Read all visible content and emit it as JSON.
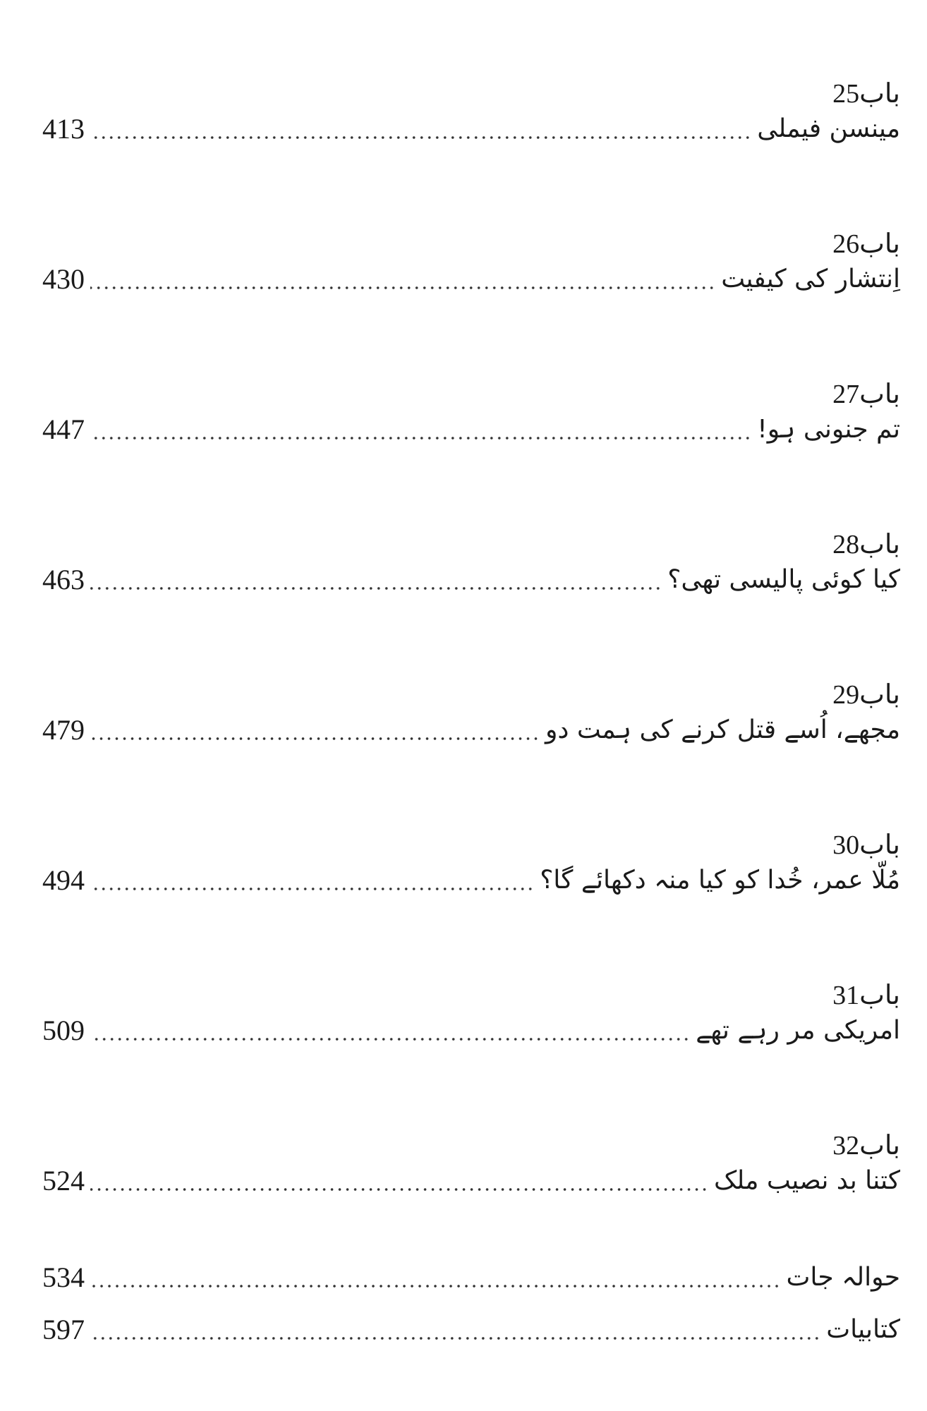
{
  "chapters": [
    {
      "label": "باب",
      "number": "25",
      "title": "مینسن فیملی",
      "page": "413"
    },
    {
      "label": "باب",
      "number": "26",
      "title": "اِنتشار کی کیفیت",
      "page": "430"
    },
    {
      "label": "باب",
      "number": "27",
      "title": "تم جنونی ہو!",
      "page": "447"
    },
    {
      "label": "باب",
      "number": "28",
      "title": "کیا کوئی پالیسی تھی؟",
      "page": "463"
    },
    {
      "label": "باب",
      "number": "29",
      "title": "مجھے، اُسے قتل کرنے کی ہمت دو",
      "page": "479"
    },
    {
      "label": "باب",
      "number": "30",
      "title": "مُلّا عمر، خُدا کو کیا منہ دکھائے گا؟",
      "page": "494"
    },
    {
      "label": "باب",
      "number": "31",
      "title": "امریکی مر رہے تھے",
      "page": "509"
    },
    {
      "label": "باب",
      "number": "32",
      "title": "کتنا بد نصیب ملک",
      "page": "524"
    }
  ],
  "appendix": [
    {
      "title": "حوالہ جات",
      "page": "534"
    },
    {
      "title": "کتابیات",
      "page": "597"
    }
  ]
}
